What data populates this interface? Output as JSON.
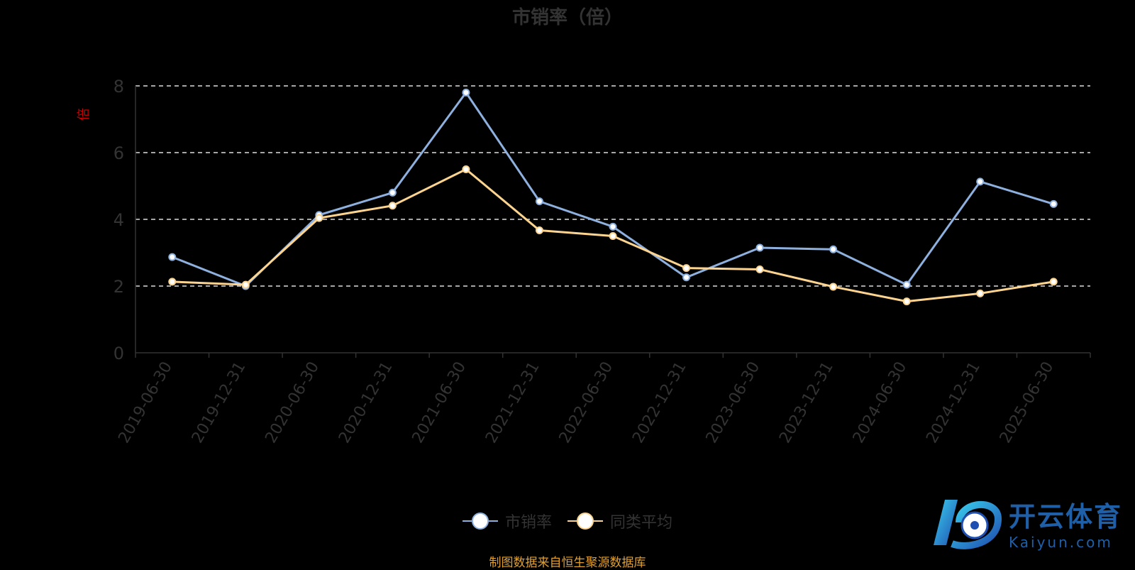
{
  "chart_data": {
    "type": "line",
    "title": "市销率（倍）",
    "ylabel": "倍",
    "xlabel": "",
    "ylim": [
      0,
      8
    ],
    "yticks": [
      "0",
      "2",
      "4",
      "6",
      "8"
    ],
    "grid": true,
    "legend_position": "bottom",
    "categories": [
      "2019-06-30",
      "2019-12-31",
      "2020-06-30",
      "2020-12-31",
      "2021-06-30",
      "2021-12-31",
      "2022-06-30",
      "2022-12-31",
      "2023-06-30",
      "2023-12-31",
      "2024-06-30",
      "2024-12-31",
      "2025-06-30"
    ],
    "series": [
      {
        "name": "市销率",
        "color": "#8eb0de",
        "values": [
          2.87,
          2.0,
          4.13,
          4.8,
          7.8,
          4.54,
          3.78,
          2.26,
          3.15,
          3.1,
          2.04,
          5.13,
          4.46
        ]
      },
      {
        "name": "同类平均",
        "color": "#fcd48f",
        "values": [
          2.13,
          2.04,
          4.04,
          4.41,
          5.5,
          3.67,
          3.5,
          2.54,
          2.5,
          1.98,
          1.54,
          1.78,
          2.13
        ]
      }
    ]
  },
  "source": "制图数据来自恒生聚源数据库",
  "watermark": {
    "cn": "开云体育",
    "en": "Kaiyun.com"
  },
  "colors": {
    "axis_name": "#cc0000",
    "source": "#e0a030"
  }
}
